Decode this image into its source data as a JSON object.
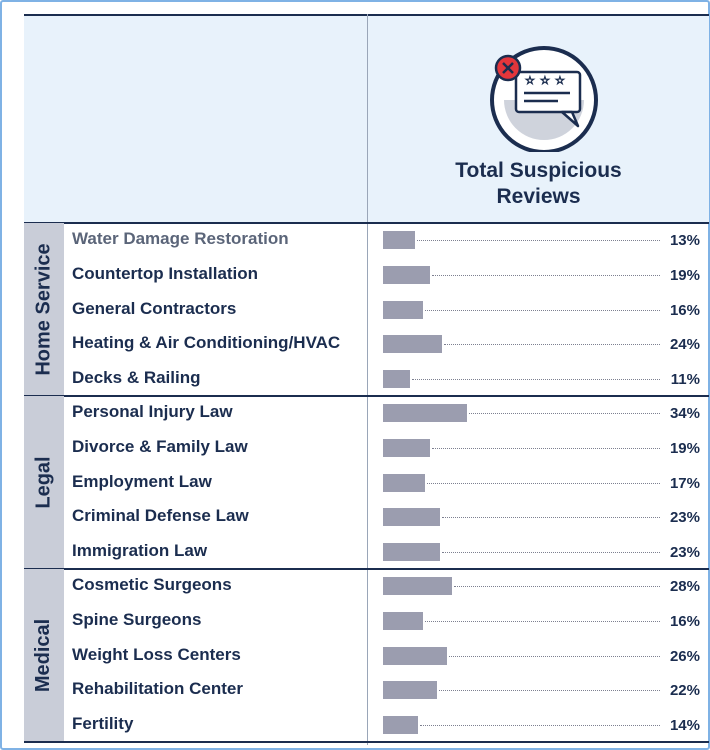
{
  "header": {
    "column_title_line1": "Total Suspicious",
    "column_title_line2": "Reviews",
    "icon": "suspicious-review-icon"
  },
  "colors": {
    "navy": "#1b2d4f",
    "bar": "#9b9daf",
    "header_bg": "#e8f2fb",
    "band": "#c9cdd8",
    "alert_red": "#e3363b"
  },
  "chart_data": {
    "type": "bar",
    "orientation": "horizontal",
    "title": "Total Suspicious Reviews",
    "unit": "%",
    "xlim": [
      0,
      100
    ],
    "groups": [
      {
        "name": "Home Service",
        "rows": [
          {
            "label": "Water Damage Restoration",
            "value": 13,
            "display": "13%"
          },
          {
            "label": "Countertop Installation",
            "value": 19,
            "display": "19%"
          },
          {
            "label": "General Contractors",
            "value": 16,
            "display": "16%"
          },
          {
            "label": "Heating & Air Conditioning/HVAC",
            "value": 24,
            "display": "24%"
          },
          {
            "label": "Decks & Railing",
            "value": 11,
            "display": "11%"
          }
        ]
      },
      {
        "name": "Legal",
        "rows": [
          {
            "label": "Personal Injury Law",
            "value": 34,
            "display": "34%"
          },
          {
            "label": "Divorce & Family Law",
            "value": 19,
            "display": "19%"
          },
          {
            "label": "Employment Law",
            "value": 17,
            "display": "17%"
          },
          {
            "label": "Criminal Defense Law",
            "value": 23,
            "display": "23%"
          },
          {
            "label": "Immigration Law",
            "value": 23,
            "display": "23%"
          }
        ]
      },
      {
        "name": "Medical",
        "rows": [
          {
            "label": "Cosmetic Surgeons",
            "value": 28,
            "display": "28%"
          },
          {
            "label": "Spine Surgeons",
            "value": 16,
            "display": "16%"
          },
          {
            "label": "Weight Loss Centers",
            "value": 26,
            "display": "26%"
          },
          {
            "label": "Rehabilitation Center",
            "value": 22,
            "display": "22%"
          },
          {
            "label": "Fertility",
            "value": 14,
            "display": "14%"
          }
        ]
      }
    ]
  }
}
